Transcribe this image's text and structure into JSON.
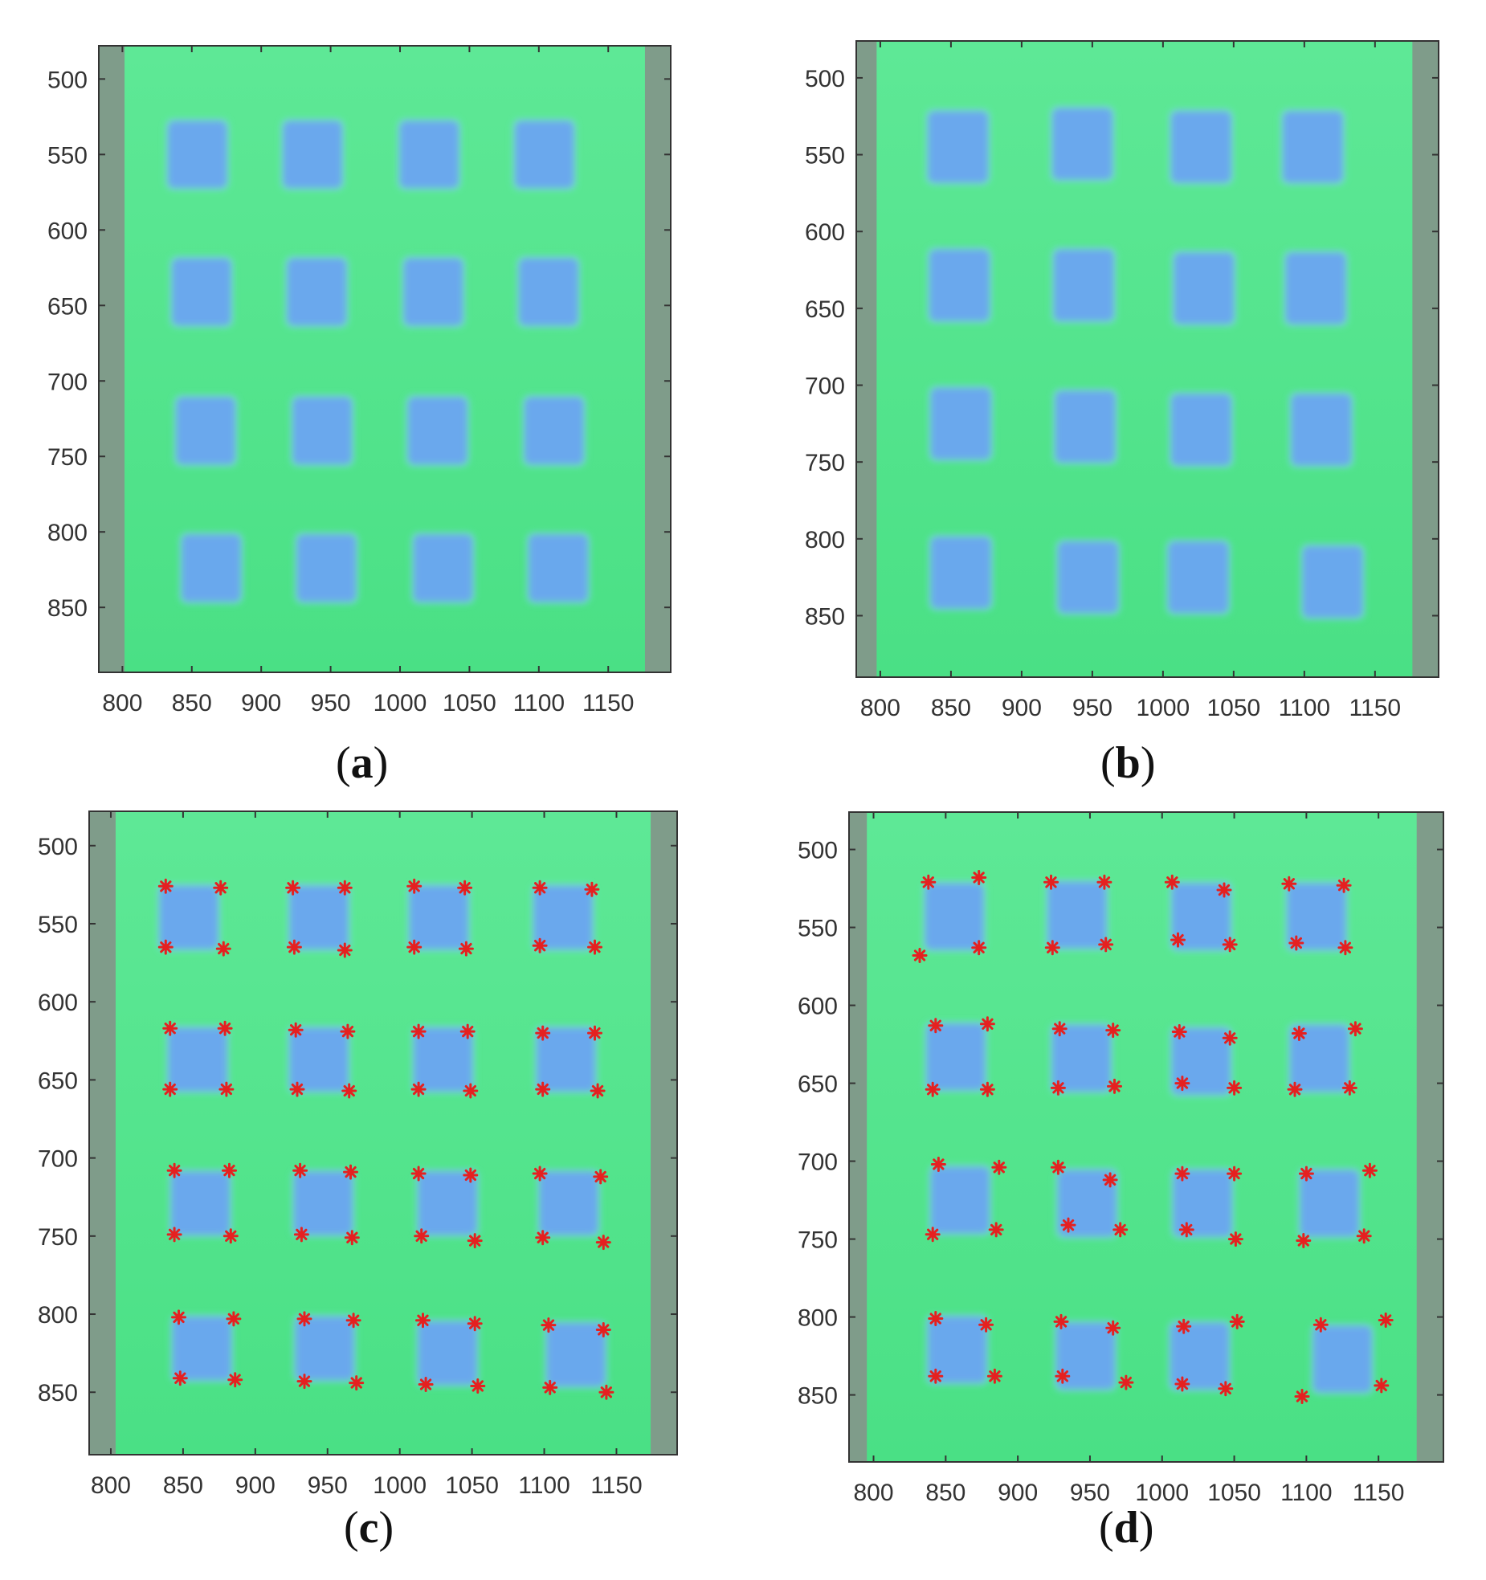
{
  "figure": {
    "panels": [
      {
        "id": "a",
        "caption": "a"
      },
      {
        "id": "b",
        "caption": "b"
      },
      {
        "id": "c",
        "caption": "c"
      },
      {
        "id": "d",
        "caption": "d"
      }
    ]
  },
  "colors": {
    "background_green": "#4ee88a",
    "border_gray": "#7f9c8a",
    "square_blue": "#6aa6f0",
    "marker_red": "#e52020",
    "axis": "#333333",
    "tick_label": "#333333"
  },
  "chart_data": [
    {
      "type": "scatter",
      "panel": "a",
      "title": "",
      "xlabel": "",
      "ylabel": "",
      "xlim": [
        783,
        1195
      ],
      "ylim": [
        478,
        893
      ],
      "y_reversed": true,
      "x_ticks": [
        800,
        850,
        900,
        950,
        1000,
        1050,
        1100,
        1150
      ],
      "y_ticks": [
        500,
        550,
        600,
        650,
        700,
        750,
        800,
        850
      ],
      "grid": false,
      "image": "photo of a green sheet with a 4x4 grid of blue squares (undeformed)",
      "squares": [
        {
          "x": 854,
          "y": 550
        },
        {
          "x": 937,
          "y": 550
        },
        {
          "x": 1021,
          "y": 550
        },
        {
          "x": 1104,
          "y": 550
        },
        {
          "x": 857,
          "y": 641
        },
        {
          "x": 940,
          "y": 641
        },
        {
          "x": 1024,
          "y": 641
        },
        {
          "x": 1107,
          "y": 641
        },
        {
          "x": 860,
          "y": 733
        },
        {
          "x": 944,
          "y": 733
        },
        {
          "x": 1027,
          "y": 733
        },
        {
          "x": 1111,
          "y": 733
        },
        {
          "x": 864,
          "y": 824
        },
        {
          "x": 947,
          "y": 824
        },
        {
          "x": 1031,
          "y": 824
        },
        {
          "x": 1114,
          "y": 824
        }
      ],
      "square_size": [
        42,
        44
      ],
      "series": []
    },
    {
      "type": "scatter",
      "panel": "b",
      "title": "",
      "xlabel": "",
      "ylabel": "",
      "xlim": [
        783,
        1195
      ],
      "ylim": [
        476,
        890
      ],
      "y_reversed": true,
      "x_ticks": [
        800,
        850,
        900,
        950,
        1000,
        1050,
        1100,
        1150
      ],
      "y_ticks": [
        500,
        550,
        600,
        650,
        700,
        750,
        800,
        850
      ],
      "grid": false,
      "image": "photo of the green sheet with the 4x4 blue squares deformed",
      "squares": [
        {
          "x": 855,
          "y": 545
        },
        {
          "x": 943,
          "y": 543
        },
        {
          "x": 1027,
          "y": 545
        },
        {
          "x": 1106,
          "y": 545
        },
        {
          "x": 856,
          "y": 635
        },
        {
          "x": 944,
          "y": 635
        },
        {
          "x": 1029,
          "y": 637
        },
        {
          "x": 1108,
          "y": 637
        },
        {
          "x": 857,
          "y": 725
        },
        {
          "x": 945,
          "y": 727
        },
        {
          "x": 1027,
          "y": 729
        },
        {
          "x": 1112,
          "y": 729
        },
        {
          "x": 857,
          "y": 822
        },
        {
          "x": 947,
          "y": 825
        },
        {
          "x": 1025,
          "y": 825
        },
        {
          "x": 1120,
          "y": 828
        }
      ],
      "square_size": [
        42,
        46
      ],
      "series": []
    },
    {
      "type": "scatter",
      "panel": "c",
      "title": "",
      "xlabel": "",
      "ylabel": "",
      "xlim": [
        785,
        1192
      ],
      "ylim": [
        478,
        890
      ],
      "y_reversed": true,
      "x_ticks": [
        800,
        850,
        900,
        950,
        1000,
        1050,
        1100,
        1150
      ],
      "y_ticks": [
        500,
        550,
        600,
        650,
        700,
        750,
        800,
        850
      ],
      "grid": false,
      "image": "undeformed photo (as in a) with corner markers",
      "squares": [
        {
          "x": 854,
          "y": 546
        },
        {
          "x": 944,
          "y": 546
        },
        {
          "x": 1027,
          "y": 546
        },
        {
          "x": 1113,
          "y": 546
        },
        {
          "x": 860,
          "y": 637
        },
        {
          "x": 944,
          "y": 637
        },
        {
          "x": 1030,
          "y": 637
        },
        {
          "x": 1115,
          "y": 637
        },
        {
          "x": 862,
          "y": 729
        },
        {
          "x": 947,
          "y": 729
        },
        {
          "x": 1033,
          "y": 729
        },
        {
          "x": 1117,
          "y": 729
        },
        {
          "x": 863,
          "y": 822
        },
        {
          "x": 948,
          "y": 822
        },
        {
          "x": 1033,
          "y": 825
        },
        {
          "x": 1122,
          "y": 826
        }
      ],
      "square_size": [
        40,
        40
      ],
      "series": [
        {
          "marker": "*",
          "color": "#e52020",
          "points": [
            [
              838,
              526
            ],
            [
              876,
              527
            ],
            [
              926,
              527
            ],
            [
              962,
              527
            ],
            [
              1010,
              526
            ],
            [
              1045,
              527
            ],
            [
              1097,
              527
            ],
            [
              1133,
              528
            ],
            [
              838,
              565
            ],
            [
              878,
              566
            ],
            [
              927,
              565
            ],
            [
              962,
              567
            ],
            [
              1010,
              565
            ],
            [
              1046,
              566
            ],
            [
              1097,
              564
            ],
            [
              1135,
              565
            ],
            [
              841,
              617
            ],
            [
              879,
              617
            ],
            [
              928,
              618
            ],
            [
              964,
              619
            ],
            [
              1013,
              619
            ],
            [
              1047,
              619
            ],
            [
              1099,
              620
            ],
            [
              1135,
              620
            ],
            [
              841,
              656
            ],
            [
              880,
              656
            ],
            [
              929,
              656
            ],
            [
              965,
              657
            ],
            [
              1013,
              656
            ],
            [
              1049,
              657
            ],
            [
              1099,
              656
            ],
            [
              1137,
              657
            ],
            [
              844,
              708
            ],
            [
              882,
              708
            ],
            [
              931,
              708
            ],
            [
              966,
              709
            ],
            [
              1013,
              710
            ],
            [
              1049,
              711
            ],
            [
              1097,
              710
            ],
            [
              1139,
              712
            ],
            [
              844,
              749
            ],
            [
              883,
              750
            ],
            [
              932,
              749
            ],
            [
              967,
              751
            ],
            [
              1015,
              750
            ],
            [
              1052,
              753
            ],
            [
              1099,
              751
            ],
            [
              1141,
              754
            ],
            [
              847,
              802
            ],
            [
              885,
              803
            ],
            [
              934,
              803
            ],
            [
              968,
              804
            ],
            [
              1016,
              804
            ],
            [
              1052,
              806
            ],
            [
              1103,
              807
            ],
            [
              1141,
              810
            ],
            [
              848,
              841
            ],
            [
              886,
              842
            ],
            [
              934,
              843
            ],
            [
              970,
              844
            ],
            [
              1018,
              845
            ],
            [
              1054,
              846
            ],
            [
              1104,
              847
            ],
            [
              1143,
              850
            ]
          ]
        }
      ]
    },
    {
      "type": "scatter",
      "panel": "d",
      "title": "",
      "xlabel": "",
      "ylabel": "",
      "xlim": [
        783,
        1195
      ],
      "ylim": [
        476,
        893
      ],
      "y_reversed": true,
      "x_ticks": [
        800,
        850,
        900,
        950,
        1000,
        1050,
        1100,
        1150
      ],
      "y_ticks": [
        500,
        550,
        600,
        650,
        700,
        750,
        800,
        850
      ],
      "grid": false,
      "image": "deformed photo (as in b) with corner markers",
      "squares": [
        {
          "x": 856,
          "y": 543
        },
        {
          "x": 941,
          "y": 542
        },
        {
          "x": 1027,
          "y": 543
        },
        {
          "x": 1107,
          "y": 543
        },
        {
          "x": 857,
          "y": 633
        },
        {
          "x": 944,
          "y": 634
        },
        {
          "x": 1027,
          "y": 636
        },
        {
          "x": 1109,
          "y": 634
        },
        {
          "x": 860,
          "y": 725
        },
        {
          "x": 948,
          "y": 727
        },
        {
          "x": 1028,
          "y": 727
        },
        {
          "x": 1116,
          "y": 727
        },
        {
          "x": 858,
          "y": 821
        },
        {
          "x": 947,
          "y": 825
        },
        {
          "x": 1026,
          "y": 825
        },
        {
          "x": 1125,
          "y": 827
        }
      ],
      "square_size": [
        40,
        42
      ],
      "series": [
        {
          "marker": "*",
          "color": "#e52020",
          "points": [
            [
              838,
              521
            ],
            [
              873,
              518
            ],
            [
              923,
              521
            ],
            [
              960,
              521
            ],
            [
              1007,
              521
            ],
            [
              1043,
              526
            ],
            [
              1088,
              522
            ],
            [
              1126,
              523
            ],
            [
              832,
              568
            ],
            [
              873,
              563
            ],
            [
              924,
              563
            ],
            [
              961,
              561
            ],
            [
              1011,
              558
            ],
            [
              1047,
              561
            ],
            [
              1093,
              560
            ],
            [
              1127,
              563
            ],
            [
              843,
              613
            ],
            [
              879,
              612
            ],
            [
              929,
              615
            ],
            [
              966,
              616
            ],
            [
              1012,
              617
            ],
            [
              1047,
              621
            ],
            [
              1095,
              618
            ],
            [
              1134,
              615
            ],
            [
              841,
              654
            ],
            [
              879,
              654
            ],
            [
              928,
              653
            ],
            [
              967,
              652
            ],
            [
              1014,
              650
            ],
            [
              1050,
              653
            ],
            [
              1092,
              654
            ],
            [
              1130,
              653
            ],
            [
              845,
              702
            ],
            [
              887,
              704
            ],
            [
              928,
              704
            ],
            [
              964,
              712
            ],
            [
              1014,
              708
            ],
            [
              1050,
              708
            ],
            [
              1100,
              708
            ],
            [
              1144,
              706
            ],
            [
              841,
              747
            ],
            [
              885,
              744
            ],
            [
              935,
              741
            ],
            [
              971,
              744
            ],
            [
              1017,
              744
            ],
            [
              1051,
              750
            ],
            [
              1098,
              751
            ],
            [
              1140,
              748
            ],
            [
              843,
              801
            ],
            [
              878,
              805
            ],
            [
              930,
              803
            ],
            [
              966,
              807
            ],
            [
              1015,
              806
            ],
            [
              1052,
              803
            ],
            [
              1110,
              805
            ],
            [
              1155,
              802
            ],
            [
              843,
              838
            ],
            [
              884,
              838
            ],
            [
              931,
              838
            ],
            [
              975,
              842
            ],
            [
              1014,
              843
            ],
            [
              1044,
              846
            ],
            [
              1097,
              851
            ],
            [
              1152,
              844
            ]
          ]
        }
      ]
    }
  ]
}
